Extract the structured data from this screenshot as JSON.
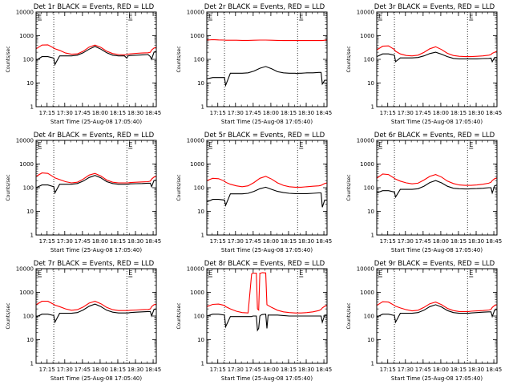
{
  "figure": {
    "panel_title_suffix": "BLACK = Events, RED = LLD",
    "ylabel": "Counts/sec",
    "xlabel": "Start Time (25-Aug-08 17:05:40)",
    "yticks": [
      "1",
      "10",
      "100",
      "1000",
      "10000"
    ],
    "xticks": [
      "17:15",
      "17:30",
      "17:45",
      "18:00",
      "18:15",
      "18:30",
      "18:45"
    ],
    "marker_labels": [
      "E",
      "E"
    ],
    "colors": {
      "events": "#000000",
      "lld": "#ff0000",
      "marker": "#000000"
    }
  },
  "chart_data": [
    {
      "type": "line",
      "id": "det1",
      "title": "Det 1r",
      "xlabel": "Start Time (25-Aug-08 17:05:40)",
      "ylabel": "Counts/sec",
      "x_units": "minutes after 17:05:40",
      "xlim": [
        0,
        102
      ],
      "ylim": [
        1,
        10000
      ],
      "yscale": "log",
      "markers_x": [
        15,
        77
      ],
      "x": [
        0,
        5,
        10,
        15,
        16,
        20,
        25,
        30,
        35,
        40,
        45,
        50,
        55,
        60,
        65,
        70,
        75,
        77,
        78,
        80,
        85,
        90,
        95,
        97,
        98,
        100,
        102
      ],
      "series": [
        {
          "name": "LLD",
          "color": "red",
          "values": [
            280,
            400,
            410,
            300,
            280,
            240,
            185,
            165,
            170,
            220,
            330,
            400,
            320,
            220,
            175,
            160,
            155,
            160,
            165,
            170,
            180,
            185,
            190,
            200,
            250,
            300,
            320
          ]
        },
        {
          "name": "Events",
          "color": "black",
          "values": [
            90,
            130,
            130,
            112,
            60,
            140,
            140,
            140,
            150,
            190,
            270,
            350,
            270,
            190,
            150,
            140,
            140,
            112,
            140,
            145,
            150,
            155,
            160,
            130,
            100,
            200,
            220
          ]
        }
      ]
    },
    {
      "type": "line",
      "id": "det2",
      "title": "Det 2r",
      "xlabel": "Start Time (25-Aug-08 17:05:40)",
      "ylabel": "Counts/sec",
      "x_units": "minutes after 17:05:40",
      "xlim": [
        0,
        102
      ],
      "ylim": [
        1,
        10000
      ],
      "yscale": "log",
      "markers_x": [
        15,
        77
      ],
      "x": [
        0,
        5,
        10,
        15,
        16,
        20,
        25,
        30,
        35,
        40,
        45,
        50,
        55,
        60,
        65,
        70,
        75,
        77,
        78,
        80,
        85,
        90,
        95,
        97,
        98,
        100,
        102
      ],
      "series": [
        {
          "name": "LLD",
          "color": "red",
          "values": [
            650,
            680,
            660,
            650,
            640,
            640,
            640,
            630,
            630,
            640,
            650,
            650,
            640,
            630,
            620,
            620,
            620,
            620,
            620,
            620,
            620,
            620,
            620,
            620,
            620,
            640,
            650
          ]
        },
        {
          "name": "Events",
          "color": "black",
          "values": [
            15,
            17,
            17,
            17,
            8,
            26,
            26,
            26,
            27,
            32,
            42,
            50,
            40,
            30,
            27,
            26,
            26,
            25,
            26,
            26,
            27,
            27,
            28,
            28,
            9,
            13,
            13
          ]
        }
      ]
    },
    {
      "type": "line",
      "id": "det3",
      "title": "Det 3r",
      "xlabel": "Start Time (25-Aug-08 17:05:40)",
      "ylabel": "Counts/sec",
      "x_units": "minutes after 17:05:40",
      "xlim": [
        0,
        102
      ],
      "ylim": [
        1,
        10000
      ],
      "yscale": "log",
      "markers_x": [
        15,
        77
      ],
      "x": [
        0,
        5,
        10,
        15,
        16,
        20,
        25,
        30,
        35,
        40,
        45,
        50,
        55,
        60,
        65,
        70,
        75,
        77,
        78,
        80,
        85,
        90,
        95,
        97,
        98,
        100,
        102
      ],
      "series": [
        {
          "name": "LLD",
          "color": "red",
          "values": [
            250,
            360,
            370,
            260,
            220,
            170,
            145,
            140,
            150,
            195,
            280,
            340,
            260,
            180,
            145,
            135,
            130,
            130,
            130,
            130,
            135,
            140,
            150,
            160,
            180,
            200,
            220
          ]
        },
        {
          "name": "Events",
          "color": "black",
          "values": [
            130,
            170,
            170,
            150,
            80,
            115,
            115,
            115,
            120,
            140,
            175,
            200,
            165,
            130,
            110,
            105,
            105,
            105,
            105,
            105,
            105,
            108,
            110,
            112,
            80,
            120,
            120
          ]
        }
      ]
    },
    {
      "type": "line",
      "id": "det4",
      "title": "Det 4r",
      "xlabel": "Start Time (25-Aug-08 17:05:40)",
      "ylabel": "Counts/sec",
      "x_units": "minutes after 17:05:40",
      "xlim": [
        0,
        102
      ],
      "ylim": [
        1,
        10000
      ],
      "yscale": "log",
      "markers_x": [
        15,
        77
      ],
      "x": [
        0,
        5,
        10,
        15,
        16,
        20,
        25,
        30,
        35,
        40,
        45,
        50,
        55,
        60,
        65,
        70,
        75,
        77,
        78,
        80,
        85,
        90,
        95,
        97,
        98,
        100,
        102
      ],
      "series": [
        {
          "name": "LLD",
          "color": "red",
          "values": [
            300,
            420,
            400,
            280,
            260,
            220,
            180,
            160,
            170,
            230,
            340,
            400,
            310,
            210,
            170,
            160,
            160,
            160,
            160,
            165,
            170,
            175,
            180,
            190,
            230,
            280,
            300
          ]
        },
        {
          "name": "Events",
          "color": "black",
          "values": [
            100,
            130,
            130,
            110,
            60,
            140,
            140,
            140,
            150,
            190,
            270,
            330,
            260,
            180,
            150,
            140,
            140,
            140,
            140,
            145,
            148,
            150,
            155,
            155,
            110,
            200,
            210
          ]
        }
      ]
    },
    {
      "type": "line",
      "id": "det5",
      "title": "Det 5r",
      "xlabel": "Start Time (25-Aug-08 17:05:40)",
      "ylabel": "Counts/sec",
      "x_units": "minutes after 17:05:40",
      "xlim": [
        0,
        102
      ],
      "ylim": [
        1,
        10000
      ],
      "yscale": "log",
      "markers_x": [
        15,
        77
      ],
      "x": [
        0,
        5,
        10,
        15,
        16,
        20,
        25,
        30,
        35,
        40,
        45,
        50,
        55,
        60,
        65,
        70,
        75,
        77,
        78,
        80,
        85,
        90,
        95,
        97,
        98,
        100,
        102
      ],
      "series": [
        {
          "name": "LLD",
          "color": "red",
          "values": [
            200,
            250,
            240,
            190,
            170,
            140,
            120,
            110,
            120,
            165,
            250,
            300,
            230,
            160,
            125,
            110,
            105,
            105,
            105,
            105,
            110,
            115,
            120,
            125,
            135,
            150,
            160
          ]
        },
        {
          "name": "Events",
          "color": "black",
          "values": [
            25,
            32,
            32,
            30,
            18,
            55,
            55,
            55,
            58,
            70,
            90,
            105,
            85,
            70,
            62,
            58,
            56,
            56,
            56,
            56,
            56,
            58,
            60,
            60,
            15,
            30,
            30
          ]
        }
      ]
    },
    {
      "type": "line",
      "id": "det6",
      "title": "Det 6r",
      "xlabel": "Start Time (25-Aug-08 17:05:40)",
      "ylabel": "Counts/sec",
      "x_units": "minutes after 17:05:40",
      "xlim": [
        0,
        102
      ],
      "ylim": [
        1,
        10000
      ],
      "yscale": "log",
      "markers_x": [
        15,
        77
      ],
      "x": [
        0,
        5,
        10,
        15,
        16,
        20,
        25,
        30,
        35,
        40,
        45,
        50,
        55,
        60,
        65,
        70,
        75,
        77,
        78,
        80,
        85,
        90,
        95,
        97,
        98,
        100,
        102
      ],
      "series": [
        {
          "name": "LLD",
          "color": "red",
          "values": [
            250,
            380,
            360,
            250,
            230,
            190,
            160,
            145,
            155,
            210,
            300,
            360,
            280,
            190,
            150,
            130,
            125,
            125,
            125,
            125,
            130,
            140,
            155,
            170,
            200,
            240,
            260
          ]
        },
        {
          "name": "Events",
          "color": "black",
          "values": [
            60,
            75,
            75,
            65,
            40,
            85,
            85,
            85,
            90,
            115,
            165,
            200,
            160,
            115,
            95,
            90,
            88,
            88,
            88,
            90,
            92,
            95,
            100,
            100,
            60,
            120,
            130
          ]
        }
      ]
    },
    {
      "type": "line",
      "id": "det7",
      "title": "Det 7r",
      "xlabel": "Start Time (25-Aug-08 17:05:40)",
      "ylabel": "Counts/sec",
      "x_units": "minutes after 17:05:40",
      "xlim": [
        0,
        102
      ],
      "ylim": [
        1,
        10000
      ],
      "yscale": "log",
      "markers_x": [
        15,
        77
      ],
      "x": [
        0,
        5,
        10,
        15,
        16,
        20,
        25,
        30,
        35,
        40,
        45,
        50,
        55,
        60,
        65,
        70,
        75,
        77,
        78,
        80,
        85,
        90,
        95,
        97,
        98,
        100,
        102
      ],
      "series": [
        {
          "name": "LLD",
          "color": "red",
          "values": [
            300,
            420,
            420,
            310,
            290,
            250,
            200,
            175,
            185,
            240,
            350,
            420,
            330,
            230,
            185,
            170,
            170,
            170,
            170,
            175,
            180,
            185,
            190,
            200,
            250,
            300,
            320
          ]
        },
        {
          "name": "Events",
          "color": "black",
          "values": [
            90,
            120,
            120,
            105,
            55,
            130,
            130,
            130,
            140,
            180,
            260,
            320,
            250,
            175,
            145,
            135,
            135,
            135,
            135,
            140,
            145,
            150,
            155,
            155,
            100,
            190,
            200
          ]
        }
      ]
    },
    {
      "type": "line",
      "id": "det8",
      "title": "Det 8r",
      "xlabel": "Start Time (25-Aug-08 17:05:40)",
      "ylabel": "Counts/sec",
      "x_units": "minutes after 17:05:40",
      "xlim": [
        0,
        102
      ],
      "ylim": [
        1,
        10000
      ],
      "yscale": "log",
      "markers_x": [
        15,
        77
      ],
      "x": [
        0,
        5,
        10,
        15,
        16,
        20,
        25,
        30,
        35,
        38,
        39,
        42,
        43,
        44,
        45,
        46,
        47,
        50,
        51,
        52,
        55,
        60,
        65,
        70,
        75,
        77,
        78,
        80,
        85,
        90,
        95,
        97,
        98,
        100,
        102
      ],
      "series": [
        {
          "name": "LLD",
          "color": "red",
          "values": [
            250,
            310,
            320,
            280,
            250,
            200,
            160,
            140,
            135,
            6000,
            6500,
            6500,
            200,
            180,
            6500,
            6500,
            6800,
            6600,
            300,
            280,
            230,
            175,
            150,
            140,
            135,
            135,
            135,
            135,
            140,
            150,
            170,
            190,
            220,
            260,
            280
          ]
        },
        {
          "name": "Events",
          "color": "black",
          "values": [
            100,
            120,
            120,
            110,
            35,
            95,
            95,
            95,
            95,
            95,
            100,
            100,
            25,
            30,
            100,
            110,
            115,
            120,
            30,
            110,
            110,
            110,
            105,
            100,
            100,
            100,
            100,
            100,
            100,
            100,
            100,
            100,
            55,
            110,
            110
          ]
        }
      ]
    },
    {
      "type": "line",
      "id": "det9",
      "title": "Det 9r",
      "xlabel": "Start Time (25-Aug-08 17:05:40)",
      "ylabel": "Counts/sec",
      "x_units": "minutes after 17:05:40",
      "xlim": [
        0,
        102
      ],
      "ylim": [
        1,
        10000
      ],
      "yscale": "log",
      "markers_x": [
        15,
        77
      ],
      "x": [
        0,
        5,
        10,
        15,
        16,
        20,
        25,
        30,
        35,
        40,
        45,
        50,
        55,
        60,
        65,
        70,
        75,
        77,
        78,
        80,
        85,
        90,
        95,
        97,
        98,
        100,
        102
      ],
      "series": [
        {
          "name": "LLD",
          "color": "red",
          "values": [
            280,
            400,
            390,
            280,
            260,
            220,
            185,
            165,
            175,
            230,
            330,
            390,
            300,
            210,
            170,
            155,
            155,
            155,
            155,
            160,
            165,
            170,
            180,
            190,
            230,
            280,
            300
          ]
        },
        {
          "name": "Events",
          "color": "black",
          "values": [
            90,
            120,
            120,
            105,
            55,
            130,
            130,
            130,
            140,
            175,
            250,
            300,
            240,
            170,
            140,
            130,
            130,
            130,
            130,
            135,
            140,
            145,
            150,
            150,
            95,
            180,
            190
          ]
        }
      ]
    }
  ]
}
